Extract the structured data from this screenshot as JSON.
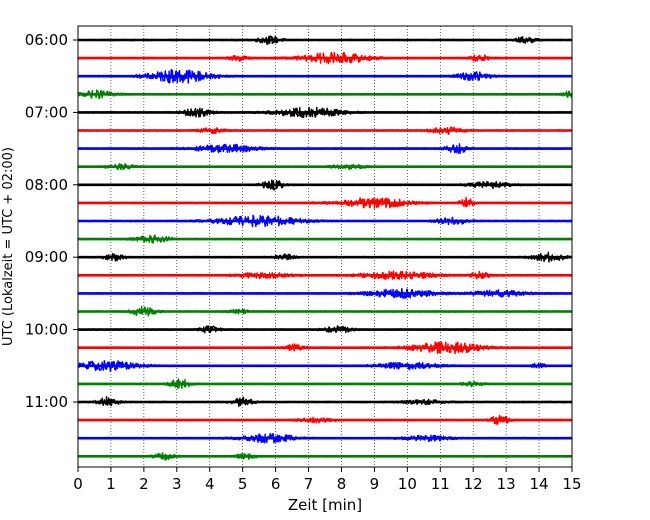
{
  "chart_data": {
    "type": "line",
    "subtype": "helicorder",
    "xlabel": "Zeit  [min]",
    "ylabel": "UTC (Lokalzeit = UTC + 02:00)",
    "xlim": [
      0,
      15
    ],
    "x_ticks": [
      "0",
      "1",
      "2",
      "3",
      "4",
      "5",
      "6",
      "7",
      "8",
      "9",
      "10",
      "11",
      "12",
      "13",
      "14",
      "15"
    ],
    "grid": "vertical dotted at each minute",
    "trace_colors": [
      "#000000",
      "#ff0000",
      "#0000ff",
      "#008000"
    ],
    "y_tick_labels": [
      {
        "label": "06:00",
        "trace_index": 0
      },
      {
        "label": "07:00",
        "trace_index": 4
      },
      {
        "label": "08:00",
        "trace_index": 8
      },
      {
        "label": "09:00",
        "trace_index": 12
      },
      {
        "label": "10:00",
        "trace_index": 16
      },
      {
        "label": "11:00",
        "trace_index": 20
      }
    ],
    "traces": [
      {
        "start": "06:00",
        "color": "#000000",
        "bursts": [
          {
            "t": 5.8,
            "amp": 0.7,
            "w": 0.35
          },
          {
            "t": 13.6,
            "amp": 0.6,
            "w": 0.3
          }
        ]
      },
      {
        "start": "06:15",
        "color": "#ff0000",
        "bursts": [
          {
            "t": 4.9,
            "amp": 0.5,
            "w": 0.3
          },
          {
            "t": 7.8,
            "amp": 1.0,
            "w": 1.0
          },
          {
            "t": 12.2,
            "amp": 0.6,
            "w": 0.3
          }
        ]
      },
      {
        "start": "06:30",
        "color": "#0000ff",
        "bursts": [
          {
            "t": 3.1,
            "amp": 1.3,
            "w": 0.9
          },
          {
            "t": 12.0,
            "amp": 0.8,
            "w": 0.5
          }
        ]
      },
      {
        "start": "06:45",
        "color": "#008000",
        "bursts": [
          {
            "t": 0.6,
            "amp": 0.7,
            "w": 0.5
          },
          {
            "t": 14.9,
            "amp": 0.5,
            "w": 0.2
          }
        ]
      },
      {
        "start": "07:00",
        "color": "#000000",
        "bursts": [
          {
            "t": 3.6,
            "amp": 0.8,
            "w": 0.4
          },
          {
            "t": 7.0,
            "amp": 0.9,
            "w": 1.0
          }
        ]
      },
      {
        "start": "07:15",
        "color": "#ff0000",
        "bursts": [
          {
            "t": 4.1,
            "amp": 0.5,
            "w": 0.4
          },
          {
            "t": 11.2,
            "amp": 0.6,
            "w": 0.5
          }
        ]
      },
      {
        "start": "07:30",
        "color": "#0000ff",
        "bursts": [
          {
            "t": 4.5,
            "amp": 0.8,
            "w": 0.9
          },
          {
            "t": 11.5,
            "amp": 0.9,
            "w": 0.3
          }
        ]
      },
      {
        "start": "07:45",
        "color": "#008000",
        "bursts": [
          {
            "t": 1.3,
            "amp": 0.5,
            "w": 0.4
          },
          {
            "t": 8.2,
            "amp": 0.4,
            "w": 0.5
          }
        ]
      },
      {
        "start": "08:00",
        "color": "#000000",
        "bursts": [
          {
            "t": 5.9,
            "amp": 0.9,
            "w": 0.35
          },
          {
            "t": 12.5,
            "amp": 0.6,
            "w": 0.6
          }
        ]
      },
      {
        "start": "08:15",
        "color": "#ff0000",
        "bursts": [
          {
            "t": 9.0,
            "amp": 1.0,
            "w": 1.0
          },
          {
            "t": 11.8,
            "amp": 1.1,
            "w": 0.2
          }
        ]
      },
      {
        "start": "08:30",
        "color": "#0000ff",
        "bursts": [
          {
            "t": 5.5,
            "amp": 1.0,
            "w": 1.2
          },
          {
            "t": 11.4,
            "amp": 0.6,
            "w": 0.5
          }
        ]
      },
      {
        "start": "08:45",
        "color": "#008000",
        "bursts": [
          {
            "t": 2.3,
            "amp": 0.7,
            "w": 0.5
          }
        ]
      },
      {
        "start": "09:00",
        "color": "#000000",
        "bursts": [
          {
            "t": 1.1,
            "amp": 0.6,
            "w": 0.3
          },
          {
            "t": 6.3,
            "amp": 0.5,
            "w": 0.3
          },
          {
            "t": 14.3,
            "amp": 0.8,
            "w": 0.5
          }
        ]
      },
      {
        "start": "09:15",
        "color": "#ff0000",
        "bursts": [
          {
            "t": 5.6,
            "amp": 0.5,
            "w": 0.8
          },
          {
            "t": 9.7,
            "amp": 0.7,
            "w": 1.1
          },
          {
            "t": 12.2,
            "amp": 0.6,
            "w": 0.3
          }
        ]
      },
      {
        "start": "09:30",
        "color": "#0000ff",
        "bursts": [
          {
            "t": 9.8,
            "amp": 0.8,
            "w": 1.0
          },
          {
            "t": 12.8,
            "amp": 0.6,
            "w": 0.8
          }
        ]
      },
      {
        "start": "09:45",
        "color": "#008000",
        "bursts": [
          {
            "t": 2.0,
            "amp": 0.9,
            "w": 0.35
          },
          {
            "t": 4.9,
            "amp": 0.4,
            "w": 0.3
          }
        ]
      },
      {
        "start": "10:00",
        "color": "#000000",
        "bursts": [
          {
            "t": 4.0,
            "amp": 0.6,
            "w": 0.3
          },
          {
            "t": 7.9,
            "amp": 0.6,
            "w": 0.4
          }
        ]
      },
      {
        "start": "10:15",
        "color": "#ff0000",
        "bursts": [
          {
            "t": 6.6,
            "amp": 0.6,
            "w": 0.3
          },
          {
            "t": 11.2,
            "amp": 1.1,
            "w": 1.0
          }
        ]
      },
      {
        "start": "10:30",
        "color": "#0000ff",
        "bursts": [
          {
            "t": 0.9,
            "amp": 1.0,
            "w": 0.9
          },
          {
            "t": 10.0,
            "amp": 0.6,
            "w": 0.9
          },
          {
            "t": 14.0,
            "amp": 0.5,
            "w": 0.2
          }
        ]
      },
      {
        "start": "10:45",
        "color": "#008000",
        "bursts": [
          {
            "t": 3.1,
            "amp": 0.9,
            "w": 0.3
          },
          {
            "t": 12.0,
            "amp": 0.4,
            "w": 0.3
          }
        ]
      },
      {
        "start": "11:00",
        "color": "#000000",
        "bursts": [
          {
            "t": 0.9,
            "amp": 0.9,
            "w": 0.3
          },
          {
            "t": 5.0,
            "amp": 0.8,
            "w": 0.3
          },
          {
            "t": 10.5,
            "amp": 0.4,
            "w": 0.6
          }
        ]
      },
      {
        "start": "11:15",
        "color": "#ff0000",
        "bursts": [
          {
            "t": 12.8,
            "amp": 1.0,
            "w": 0.25
          },
          {
            "t": 7.2,
            "amp": 0.4,
            "w": 0.5
          }
        ]
      },
      {
        "start": "11:30",
        "color": "#0000ff",
        "bursts": [
          {
            "t": 5.8,
            "amp": 0.8,
            "w": 0.8
          },
          {
            "t": 10.6,
            "amp": 0.5,
            "w": 0.7
          }
        ]
      },
      {
        "start": "11:45",
        "color": "#008000",
        "bursts": [
          {
            "t": 2.6,
            "amp": 0.6,
            "w": 0.3
          },
          {
            "t": 5.1,
            "amp": 0.5,
            "w": 0.3
          }
        ]
      }
    ]
  }
}
